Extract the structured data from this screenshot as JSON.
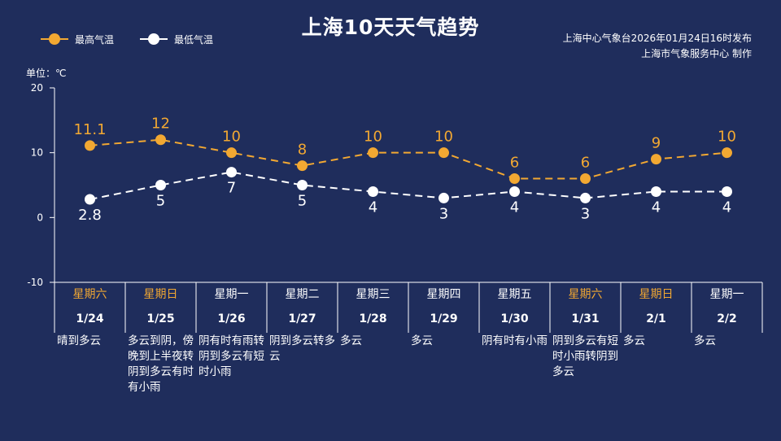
{
  "title": "上海10天天气趋势",
  "legend": {
    "high": "最高气温",
    "low": "最低气温"
  },
  "publisher": {
    "line1": "上海中心气象台2026年01月24日16时发布",
    "line2": "上海市气象服务中心 制作"
  },
  "unit_label": "单位：℃",
  "colors": {
    "high": "#f2a832",
    "low": "#ffffff",
    "background": "#1f2d5c",
    "weekend": "#f2a832"
  },
  "days": [
    {
      "weekday": "星期六",
      "date": "1/24",
      "weather": "晴到多云",
      "weekend": true
    },
    {
      "weekday": "星期日",
      "date": "1/25",
      "weather": "多云到阴，傍晚到上半夜转阴到多云有时有小雨",
      "weekend": true
    },
    {
      "weekday": "星期一",
      "date": "1/26",
      "weather": "阴有时有雨转阴到多云有短时小雨",
      "weekend": false
    },
    {
      "weekday": "星期二",
      "date": "1/27",
      "weather": "阴到多云转多云",
      "weekend": false
    },
    {
      "weekday": "星期三",
      "date": "1/28",
      "weather": "多云",
      "weekend": false
    },
    {
      "weekday": "星期四",
      "date": "1/29",
      "weather": "多云",
      "weekend": false
    },
    {
      "weekday": "星期五",
      "date": "1/30",
      "weather": "阴有时有小雨",
      "weekend": false
    },
    {
      "weekday": "星期六",
      "date": "1/31",
      "weather": "阴到多云有短时小雨转阴到多云",
      "weekend": true
    },
    {
      "weekday": "星期日",
      "date": "2/1",
      "weather": "多云",
      "weekend": true
    },
    {
      "weekday": "星期一",
      "date": "2/2",
      "weather": "多云",
      "weekend": false
    }
  ],
  "chart_data": {
    "type": "line",
    "title": "上海10天天气趋势",
    "categories": [
      "1/24",
      "1/25",
      "1/26",
      "1/27",
      "1/28",
      "1/29",
      "1/30",
      "1/31",
      "2/1",
      "2/2"
    ],
    "series": [
      {
        "name": "最高气温",
        "values": [
          11.1,
          12,
          10,
          8,
          10,
          10,
          6,
          6,
          9,
          10
        ],
        "labels": [
          "11.1",
          "12",
          "10",
          "8",
          "10",
          "10",
          "6",
          "6",
          "9",
          "10"
        ],
        "color": "#f2a832"
      },
      {
        "name": "最低气温",
        "values": [
          2.8,
          5,
          7,
          5,
          4,
          3,
          4,
          3,
          4,
          4
        ],
        "labels": [
          "2.8",
          "5",
          "7",
          "5",
          "4",
          "3",
          "4",
          "3",
          "4",
          "4"
        ],
        "color": "#ffffff"
      }
    ],
    "ylabel": "单位：℃",
    "ylim": [
      -10,
      20
    ],
    "yticks": [
      20,
      10,
      0,
      -10
    ],
    "legend": "top-left",
    "grid": false
  }
}
